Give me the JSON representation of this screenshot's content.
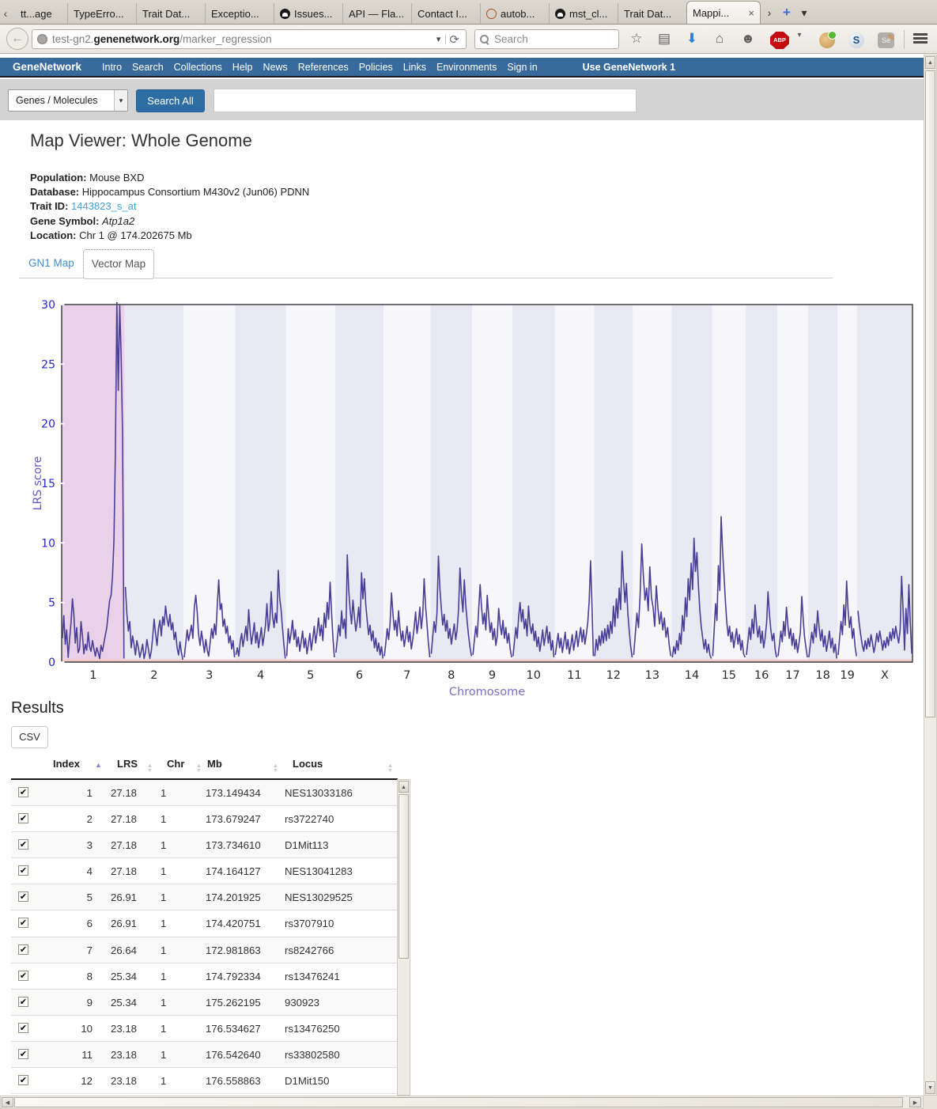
{
  "glyphs": {
    "check": "✔",
    "close": "×",
    "sort_up": "▲",
    "sort_down": "▼",
    "back": "←",
    "reload": "⟳",
    "dropdown": "▾",
    "star": "☆",
    "clipboard": "▤",
    "download": "⬇",
    "home": "⌂",
    "smiley": "☻",
    "tab_left": "‹",
    "tab_right": "›",
    "new_tab": "+",
    "pencil": "✎",
    "scroll_up": "▲",
    "scroll_down": "▼",
    "scroll_left": "◀",
    "scroll_right": "▶"
  },
  "browser": {
    "tabs": [
      {
        "label": "tt...age"
      },
      {
        "label": "TypeErro..."
      },
      {
        "label": "Trait Dat..."
      },
      {
        "label": "Exceptio..."
      },
      {
        "label": "Issues...",
        "icon": "github"
      },
      {
        "label": "API — Fla..."
      },
      {
        "label": "Contact I..."
      },
      {
        "label": "autob...",
        "icon": "autobuild"
      },
      {
        "label": "mst_cl...",
        "icon": "github"
      },
      {
        "label": "Trait Dat..."
      },
      {
        "label": "Mappi...",
        "active": true
      }
    ],
    "url": {
      "prefix": "test-gn2.",
      "domain": "genenetwork.org",
      "path": "/marker_regression"
    },
    "search_placeholder": "Search",
    "icon_labels": {
      "abp": "ABP",
      "s": "S",
      "se": "Se"
    }
  },
  "site_nav": {
    "brand": "GeneNetwork",
    "items": [
      "Intro",
      "Search",
      "Collections",
      "Help",
      "News",
      "References",
      "Policies",
      "Links",
      "Environments",
      "Sign in"
    ],
    "right": "Use GeneNetwork 1"
  },
  "search_bar": {
    "category": "Genes / Molecules",
    "button": "Search All",
    "query": ""
  },
  "page": {
    "title": "Map Viewer: Whole Genome",
    "meta": [
      {
        "label": "Population:",
        "value": "Mouse BXD",
        "style": "plain"
      },
      {
        "label": "Database:",
        "value": "Hippocampus Consortium M430v2 (Jun06) PDNN",
        "style": "plain"
      },
      {
        "label": "Trait ID:",
        "value": "1443823_s_at",
        "style": "link"
      },
      {
        "label": "Gene Symbol:",
        "value": "Atp1a2",
        "style": "italic"
      },
      {
        "label": "Location:",
        "value": "Chr 1 @ 174.202675 Mb",
        "style": "plain"
      }
    ],
    "map_tabs": {
      "gn1": "GN1 Map",
      "vector": "Vector Map"
    }
  },
  "colors": {
    "band_light": "#f6f6fb",
    "band_dark": "#e9e9f4",
    "band_highlight": "#e9d2e9",
    "line": "#4a3e97",
    "border": "#4d4d4d",
    "axis_text": "#2525cf",
    "ylabel": "#5f58c9",
    "xlabel": "#7b6fc9",
    "chr_label": "#2b2b2b",
    "baseline": "#f2c8c8",
    "baseline_edge": "#d89a9a",
    "navbar": "#386a9c",
    "accent_button": "#2e6da4"
  },
  "chart_data": {
    "type": "line",
    "title": "",
    "xlabel": "Chromosome",
    "ylabel": "LRS score",
    "ylim": [
      0,
      30
    ],
    "yticks": [
      0,
      5,
      10,
      15,
      20,
      25,
      30
    ],
    "grid": false,
    "legend": false,
    "note": "Genome-wide LRS scan; chromosome 1 band highlighted (trait locus), peak LRS ~30 at chr1 ~174 Mb",
    "chromosomes": [
      {
        "name": "1",
        "rel_width": 195,
        "highlight": true,
        "values": [
          2.0,
          3.9,
          1.5,
          2.7,
          0.4,
          1.9,
          3.3,
          5.3,
          4.0,
          1.6,
          2.9,
          0.8,
          1.1,
          3.4,
          2.2,
          0.7,
          1.5,
          1.0,
          2.5,
          1.3,
          0.9,
          1.8,
          1.1,
          0.5,
          1.2,
          0.8,
          0.3,
          1.4,
          0.9,
          1.6,
          2.3,
          2.9,
          4.1,
          5.2,
          5.6,
          7.2,
          10.2,
          17.5,
          30.2,
          22.8,
          30.0,
          25.7,
          19.1,
          0.3
        ]
      },
      {
        "name": "2",
        "rel_width": 182,
        "values": [
          6.3,
          4.1,
          2.6,
          3.4,
          1.2,
          2.2,
          1.5,
          0.6,
          1.8,
          1.2,
          0.4,
          0.9,
          1.5,
          0.3,
          0.8,
          1.9,
          1.1,
          0.3,
          0.9,
          2.1,
          3.6,
          2.4,
          1.4,
          2.8,
          3.5,
          2.2,
          3.8,
          3.1,
          4.7,
          3.6,
          3.0,
          4.0,
          2.7,
          3.3,
          1.9,
          2.5,
          1.2,
          0.6,
          1.7,
          0.8,
          0.2
        ]
      },
      {
        "name": "3",
        "rel_width": 160,
        "values": [
          0.4,
          1.5,
          2.7,
          1.8,
          2.4,
          3.1,
          2.0,
          4.6,
          5.6,
          4.2,
          2.3,
          1.4,
          2.6,
          1.7,
          0.8,
          1.9,
          1.0,
          0.5,
          1.6,
          2.8,
          2.0,
          3.2,
          2.3,
          4.8,
          6.9,
          4.4,
          4.9,
          3.0,
          3.6,
          2.4,
          3.0,
          1.6,
          2.2,
          1.1,
          1.8,
          0.4
        ]
      },
      {
        "name": "4",
        "rel_width": 157,
        "values": [
          0.6,
          1.2,
          0.5,
          1.7,
          2.4,
          1.3,
          2.1,
          3.0,
          1.8,
          4.4,
          2.7,
          1.5,
          2.3,
          3.3,
          1.6,
          2.5,
          1.2,
          2.0,
          2.9,
          1.4,
          2.2,
          3.2,
          4.9,
          2.6,
          3.4,
          5.9,
          3.8,
          2.9,
          4.1,
          3.3,
          7.7,
          5.4,
          4.4,
          2.8,
          1.5,
          0.3
        ]
      },
      {
        "name": "5",
        "rel_width": 152,
        "values": [
          0.5,
          2.8,
          1.6,
          2.4,
          3.5,
          1.9,
          2.7,
          1.3,
          2.1,
          0.9,
          1.7,
          2.6,
          1.2,
          2.0,
          0.7,
          1.5,
          2.4,
          1.0,
          1.9,
          3.0,
          1.6,
          2.5,
          3.7,
          2.2,
          3.1,
          1.8,
          4.1,
          2.9,
          5.0,
          3.6,
          6.7,
          4.2,
          2.0,
          0.4
        ]
      },
      {
        "name": "6",
        "rel_width": 150,
        "values": [
          0.8,
          1.9,
          3.1,
          2.2,
          4.3,
          2.8,
          3.6,
          2.0,
          9.0,
          6.1,
          4.4,
          3.2,
          5.2,
          3.8,
          2.6,
          3.4,
          4.6,
          2.9,
          7.5,
          5.3,
          7.0,
          4.8,
          3.5,
          2.3,
          3.1,
          1.8,
          2.6,
          1.2,
          2.0,
          0.9,
          1.6,
          0.6,
          1.3,
          0.3
        ]
      },
      {
        "name": "7",
        "rel_width": 145,
        "values": [
          0.5,
          1.6,
          2.8,
          1.9,
          3.2,
          5.8,
          4.1,
          2.7,
          3.5,
          2.2,
          4.3,
          2.9,
          1.8,
          2.6,
          1.3,
          2.1,
          3.0,
          1.7,
          2.5,
          1.1,
          1.9,
          2.9,
          4.2,
          2.4,
          3.3,
          4.6,
          2.8,
          3.9,
          7.0,
          4.7,
          3.2,
          1.6,
          0.4
        ]
      },
      {
        "name": "8",
        "rel_width": 129,
        "values": [
          0.7,
          2.1,
          3.4,
          2.5,
          4.1,
          8.9,
          6.2,
          4.5,
          3.1,
          4.0,
          2.6,
          3.5,
          2.0,
          2.8,
          1.5,
          2.3,
          3.2,
          1.9,
          2.7,
          4.4,
          7.9,
          5.6,
          4.2,
          6.9,
          4.8,
          3.4,
          2.2,
          1.2,
          0.5
        ]
      },
      {
        "name": "9",
        "rel_width": 124,
        "values": [
          0.6,
          1.8,
          3.0,
          2.1,
          4.3,
          6.5,
          4.6,
          3.2,
          4.1,
          2.7,
          5.6,
          3.9,
          2.5,
          3.3,
          1.9,
          2.8,
          1.4,
          2.2,
          4.5,
          3.1,
          2.3,
          3.5,
          2.0,
          2.9,
          1.6,
          2.4,
          1.1,
          0.4
        ]
      },
      {
        "name": "10",
        "rel_width": 131,
        "values": [
          0.5,
          1.7,
          2.9,
          2.0,
          3.8,
          5.0,
          3.4,
          4.4,
          2.8,
          3.6,
          2.2,
          4.7,
          3.1,
          2.4,
          3.2,
          1.8,
          2.6,
          1.3,
          2.1,
          0.9,
          1.7,
          2.7,
          1.4,
          2.2,
          3.0,
          1.6,
          2.5,
          1.0,
          1.8,
          0.4
        ]
      },
      {
        "name": "11",
        "rel_width": 122,
        "values": [
          0.6,
          1.5,
          2.4,
          1.2,
          2.0,
          0.8,
          1.6,
          2.5,
          1.1,
          1.9,
          0.7,
          1.4,
          2.3,
          1.0,
          1.8,
          2.6,
          1.3,
          2.1,
          2.9,
          1.7,
          2.7,
          1.5,
          2.3,
          3.3,
          5.1,
          8.5,
          4.9,
          0.5
        ]
      },
      {
        "name": "12",
        "rel_width": 120,
        "values": [
          0.5,
          1.9,
          1.0,
          2.2,
          1.4,
          2.6,
          1.6,
          2.8,
          1.8,
          3.1,
          2.0,
          3.4,
          2.4,
          4.7,
          3.0,
          5.3,
          3.7,
          6.2,
          4.4,
          9.3,
          6.8,
          5.0,
          6.6,
          4.1,
          2.6,
          1.3,
          0.4
        ]
      },
      {
        "name": "13",
        "rel_width": 120,
        "values": [
          0.6,
          2.3,
          4.1,
          2.9,
          5.7,
          9.9,
          7.2,
          5.2,
          6.2,
          4.3,
          8.0,
          5.4,
          4.6,
          3.0,
          6.4,
          4.5,
          3.2,
          4.2,
          2.7,
          3.7,
          2.1,
          2.9,
          1.4,
          0.5
        ]
      },
      {
        "name": "14",
        "rel_width": 125,
        "values": [
          0.4,
          1.3,
          0.7,
          1.8,
          1.0,
          2.4,
          1.5,
          3.9,
          2.6,
          5.4,
          3.8,
          7.0,
          5.2,
          8.3,
          6.1,
          10.4,
          7.6,
          9.2,
          6.5,
          4.4,
          3.0,
          2.0,
          1.1,
          1.9,
          0.8,
          1.5,
          0.6,
          0.3
        ]
      },
      {
        "name": "15",
        "rel_width": 104,
        "values": [
          0.5,
          2.7,
          4.9,
          3.5,
          8.1,
          6.0,
          12.2,
          9.4,
          7.3,
          5.1,
          3.4,
          2.2,
          3.0,
          1.7,
          2.5,
          1.2,
          2.0,
          2.8,
          1.5,
          2.3,
          1.0,
          1.8,
          0.7,
          0.4
        ]
      },
      {
        "name": "16",
        "rel_width": 98,
        "values": [
          0.6,
          1.7,
          2.9,
          1.9,
          3.6,
          2.4,
          4.8,
          3.2,
          2.1,
          3.0,
          1.6,
          2.6,
          1.2,
          2.0,
          3.3,
          5.9,
          4.0,
          2.7,
          1.8,
          2.4,
          1.0,
          0.4
        ]
      },
      {
        "name": "17",
        "rel_width": 95,
        "values": [
          0.5,
          1.5,
          2.6,
          1.7,
          3.4,
          2.2,
          4.6,
          3.1,
          2.0,
          2.8,
          1.4,
          2.4,
          1.1,
          1.9,
          0.8,
          1.6,
          2.5,
          5.5,
          3.6,
          2.1,
          1.2,
          0.4
        ]
      },
      {
        "name": "18",
        "rel_width": 91,
        "values": [
          0.4,
          1.4,
          2.5,
          1.6,
          3.2,
          2.1,
          4.3,
          2.9,
          1.8,
          2.7,
          1.3,
          2.2,
          0.9,
          1.7,
          2.6,
          1.2,
          2.0,
          0.8,
          1.5,
          0.3
        ]
      },
      {
        "name": "19",
        "rel_width": 61,
        "values": [
          0.6,
          2.0,
          3.4,
          2.3,
          4.8,
          3.1,
          6.8,
          4.4,
          2.9,
          3.8,
          2.0,
          2.8,
          1.3,
          0.5
        ]
      },
      {
        "name": "X",
        "rel_width": 171,
        "values": [
          4.3,
          3.1,
          2.2,
          1.4,
          0.9,
          1.8,
          1.1,
          2.0,
          1.3,
          2.3,
          1.6,
          0.8,
          1.5,
          2.4,
          1.7,
          2.6,
          1.9,
          1.0,
          1.8,
          1.2,
          2.1,
          1.4,
          2.5,
          1.8,
          2.8,
          2.0,
          3.0,
          2.2,
          1.6,
          2.7,
          7.2,
          4.6,
          1.0,
          4.5,
          2.4,
          6.5,
          3.3,
          0.7
        ]
      }
    ]
  },
  "results": {
    "heading": "Results",
    "csv_button": "CSV",
    "table": {
      "headers": [
        {
          "label": "Index",
          "sort": "asc"
        },
        {
          "label": "LRS"
        },
        {
          "label": "Chr"
        },
        {
          "label": "Mb"
        },
        {
          "label": "Locus"
        }
      ],
      "rows": [
        {
          "checked": true,
          "index": "1",
          "lrs": "27.18",
          "chr": "1",
          "mb": "173.149434",
          "locus": "NES13033186"
        },
        {
          "checked": true,
          "index": "2",
          "lrs": "27.18",
          "chr": "1",
          "mb": "173.679247",
          "locus": "rs3722740"
        },
        {
          "checked": true,
          "index": "3",
          "lrs": "27.18",
          "chr": "1",
          "mb": "173.734610",
          "locus": "D1Mit113"
        },
        {
          "checked": true,
          "index": "4",
          "lrs": "27.18",
          "chr": "1",
          "mb": "174.164127",
          "locus": "NES13041283"
        },
        {
          "checked": true,
          "index": "5",
          "lrs": "26.91",
          "chr": "1",
          "mb": "174.201925",
          "locus": "NES13029525"
        },
        {
          "checked": true,
          "index": "6",
          "lrs": "26.91",
          "chr": "1",
          "mb": "174.420751",
          "locus": "rs3707910"
        },
        {
          "checked": true,
          "index": "7",
          "lrs": "26.64",
          "chr": "1",
          "mb": "172.981863",
          "locus": "rs8242766"
        },
        {
          "checked": true,
          "index": "8",
          "lrs": "25.34",
          "chr": "1",
          "mb": "174.792334",
          "locus": "rs13476241"
        },
        {
          "checked": true,
          "index": "9",
          "lrs": "25.34",
          "chr": "1",
          "mb": "175.262195",
          "locus": "930923"
        },
        {
          "checked": true,
          "index": "10",
          "lrs": "23.18",
          "chr": "1",
          "mb": "176.534627",
          "locus": "rs13476250"
        },
        {
          "checked": true,
          "index": "11",
          "lrs": "23.18",
          "chr": "1",
          "mb": "176.542640",
          "locus": "rs33802580"
        },
        {
          "checked": true,
          "index": "12",
          "lrs": "23.18",
          "chr": "1",
          "mb": "176.558863",
          "locus": "D1Mit150"
        }
      ]
    }
  }
}
